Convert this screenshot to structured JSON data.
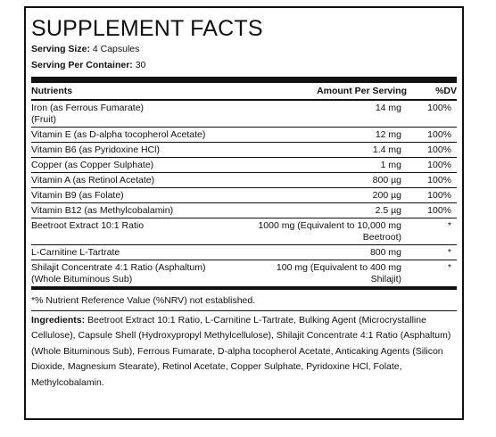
{
  "title": "SUPPLEMENT FACTS",
  "serving_size": {
    "label": "Serving Size:",
    "value": " 4 Capsules"
  },
  "servings_per_container": {
    "label": "Serving Per Container:",
    "value": " 30"
  },
  "header": {
    "nutrients": "Nutrients",
    "amount": "Amount Per Serving",
    "dv": "%DV"
  },
  "rows": [
    {
      "name": "Iron (as Ferrous Fumarate)\n(Fruit)",
      "amount": "14 mg",
      "dv": "100%"
    },
    {
      "name": "Vitamin E (as D-alpha tocopherol Acetate)",
      "amount": "12 mg",
      "dv": "100%"
    },
    {
      "name": "Vitamin B6 (as Pyridoxine HCl)",
      "amount": "1.4 mg",
      "dv": "100%"
    },
    {
      "name": "Copper (as Copper Sulphate)",
      "amount": "1 mg",
      "dv": "100%"
    },
    {
      "name": "Vitamin A (as Retinol Acetate)",
      "amount": "800 µg",
      "dv": "100%"
    },
    {
      "name": "Vitamin B9 (as Folate)",
      "amount": "200 µg",
      "dv": "100%"
    },
    {
      "name": "Vitamin B12 (as Methylcobalamin)",
      "amount": "2.5 µg",
      "dv": "100%"
    },
    {
      "name": "Beetroot Extract 10:1 Ratio",
      "amount": "1000 mg (Equivalent to 10,000 mg\nBeetroot)",
      "dv": "*"
    },
    {
      "name": "L-Carnitine L-Tartrate",
      "amount": "800 mg",
      "dv": "*"
    },
    {
      "name": "Shilajit Concentrate 4:1 Ratio (Asphaltum)\n(Whole Bituminous Sub)",
      "amount": "100 mg (Equivalent to 400 mg\nShilajit)",
      "dv": "*"
    }
  ],
  "footnote": "*% Nutrient Reference Value (%NRV) not established.",
  "ingredients": {
    "label": "Ingredients:",
    "text": " Beetroot Extract 10:1 Ratio, L-Carnitine L-Tartrate, Bulking Agent (Microcrystalline Cellulose), Capsule Shell (Hydroxypropyl Methylcellulose), Shilajit Concentrate 4:1 Ratio (Asphaltum) (Whole Bituminous Sub), Ferrous Fumarate, D-alpha tocopherol Acetate, Anticaking Agents (Silicon Dioxide, Magnesium Stearate), Retinol Acetate, Copper Sulphate, Pyridoxine HCl, Folate, Methylcobalamin."
  }
}
